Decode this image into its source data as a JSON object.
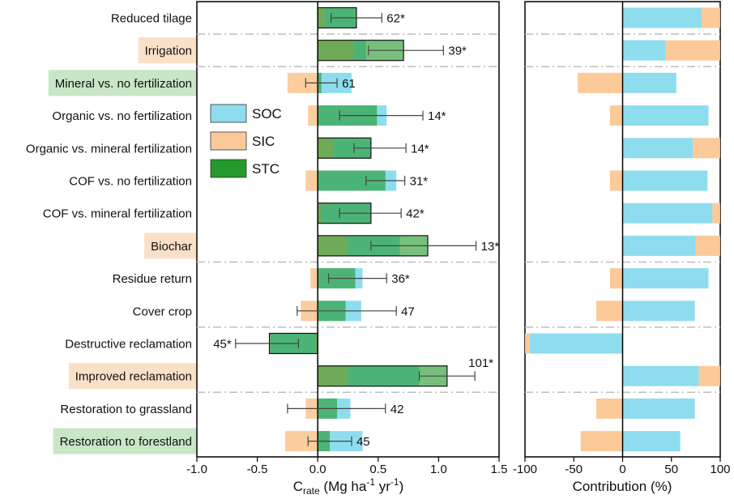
{
  "chart_data": {
    "type": "bar",
    "categories": [
      "Reduced tilage",
      "Irrigation",
      "Mineral vs. no fertilization",
      "Organic vs. no fertilization",
      "Organic vs. mineral fertilization",
      "COF vs. no fertilization",
      "COF vs. mineral fertilization",
      "Biochar",
      "Residue return",
      "Cover crop",
      "Destructive reclamation",
      "Improved reclamation",
      "Restoration to grassland",
      "Restoration to forestland"
    ],
    "category_highlight": [
      "none",
      "orange",
      "green",
      "none",
      "none",
      "none",
      "none",
      "orange",
      "none",
      "none",
      "none",
      "orange",
      "none",
      "green"
    ],
    "highlight_colors": {
      "orange": "#fbe0c8",
      "green": "#c9e6c6"
    },
    "colors": {
      "SOC": "#7ad7ec",
      "SIC": "#fcc48e",
      "STC": "#239a2b"
    },
    "legend": {
      "entries": [
        "SOC",
        "SIC",
        "STC"
      ]
    },
    "crate_panel": {
      "xlabel_main": "C",
      "xlabel_sub": "rate",
      "xlabel_unit_prefix": " (Mg ha",
      "xlabel_exp1": "-1",
      "xlabel_mid": " yr",
      "xlabel_exp2": "-1",
      "xlabel_suffix": ")",
      "xlim": [
        -1.0,
        1.5
      ],
      "xticks": [
        -1.0,
        -0.5,
        0.0,
        0.5,
        1.0,
        1.5
      ],
      "xtick_labels": [
        "-1.0",
        "-0.5",
        "0.0",
        "0.5",
        "1.0",
        "1.5"
      ],
      "series": [
        {
          "name": "SOC",
          "values": [
            0.32,
            0.4,
            0.28,
            0.57,
            0.44,
            0.65,
            0.44,
            0.68,
            0.37,
            0.36,
            -0.39,
            0.84,
            0.27,
            0.37
          ]
        },
        {
          "name": "SIC",
          "values": [
            0.06,
            0.3,
            -0.25,
            -0.08,
            0.13,
            -0.1,
            0.03,
            0.24,
            -0.06,
            -0.14,
            -0.02,
            0.24,
            -0.1,
            -0.27
          ]
        },
        {
          "name": "STC",
          "values": [
            0.32,
            0.71,
            0.03,
            0.49,
            0.44,
            0.56,
            0.44,
            0.91,
            0.31,
            0.23,
            -0.4,
            1.07,
            0.16,
            0.1
          ]
        }
      ],
      "error_low": [
        0.11,
        0.42,
        -0.1,
        0.18,
        0.3,
        0.4,
        0.18,
        0.44,
        0.09,
        -0.17,
        -0.68,
        0.84,
        -0.25,
        -0.08
      ],
      "error_high": [
        0.53,
        1.04,
        0.16,
        0.87,
        0.73,
        0.72,
        0.69,
        1.31,
        0.57,
        0.65,
        -0.16,
        1.3,
        0.56,
        0.28
      ],
      "annotations": [
        "62*",
        "39*",
        "61",
        "14*",
        "14*",
        "31*",
        "42*",
        "13*",
        "36*",
        "47",
        "45*",
        "101*",
        "42",
        "45"
      ],
      "annotation_side": [
        "right",
        "right",
        "right",
        "right",
        "right",
        "right",
        "right",
        "right",
        "right",
        "right",
        "left",
        "above",
        "right",
        "right"
      ]
    },
    "contribution_panel": {
      "xlabel": "Contribution (%)",
      "xlim": [
        -100,
        100
      ],
      "xticks": [
        -100,
        -50,
        0,
        50,
        100
      ],
      "xtick_labels": [
        "-100",
        "-50",
        "0",
        "50",
        "100"
      ],
      "series": [
        {
          "name": "SOC",
          "values": [
            81,
            44,
            55,
            88,
            72,
            87,
            92,
            75,
            88,
            74,
            -95,
            78,
            74,
            59
          ]
        },
        {
          "name": "SIC",
          "values": [
            19,
            56,
            -46,
            -13,
            28,
            -13,
            8,
            25,
            -13,
            -27,
            -5,
            22,
            -27,
            -43
          ]
        }
      ]
    },
    "separators_after_index": [
      0,
      1,
      7,
      9,
      11
    ],
    "grid": false
  }
}
